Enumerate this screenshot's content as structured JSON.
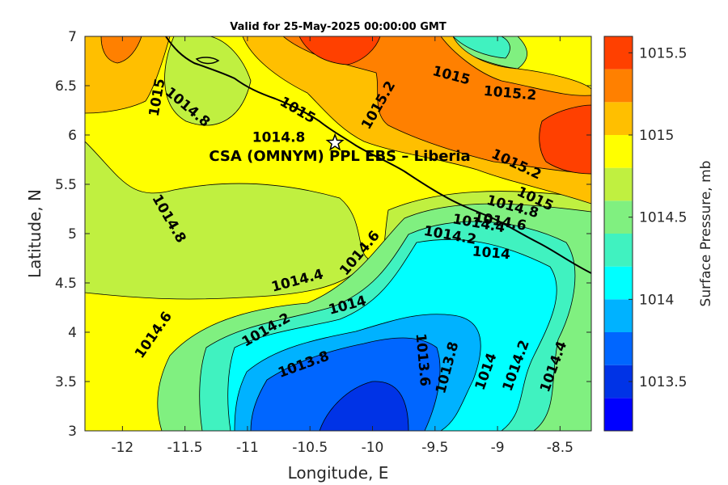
{
  "chart_data": {
    "type": "contourf",
    "title": "Valid for 25-May-2025 00:00:00 GMT",
    "xlabel": "Longitude, E",
    "ylabel": "Latitude, N",
    "xlim": [
      -12.3,
      -8.25
    ],
    "ylim": [
      3,
      7
    ],
    "xticks": [
      -12,
      -11.5,
      -11,
      -10.5,
      -10,
      -9.5,
      -9,
      -8.5
    ],
    "yticks": [
      3,
      3.5,
      4,
      4.5,
      5,
      5.5,
      6,
      6.5,
      7
    ],
    "colorbar": {
      "label": "Surface Pressure, mb",
      "range": [
        1013.2,
        1015.6
      ],
      "ticks": [
        1013.5,
        1014,
        1014.5,
        1015,
        1015.5
      ],
      "levels": [
        {
          "from": 1013.2,
          "to": 1013.4,
          "color": "#0000ff"
        },
        {
          "from": 1013.4,
          "to": 1013.6,
          "color": "#0033e6"
        },
        {
          "from": 1013.6,
          "to": 1013.8,
          "color": "#0066ff"
        },
        {
          "from": 1013.8,
          "to": 1014.0,
          "color": "#00b2ff"
        },
        {
          "from": 1014.0,
          "to": 1014.2,
          "color": "#00ffff"
        },
        {
          "from": 1014.2,
          "to": 1014.4,
          "color": "#40f2c0"
        },
        {
          "from": 1014.4,
          "to": 1014.6,
          "color": "#80f080"
        },
        {
          "from": 1014.6,
          "to": 1014.8,
          "color": "#c0f040"
        },
        {
          "from": 1014.8,
          "to": 1015.0,
          "color": "#ffff00"
        },
        {
          "from": 1015.0,
          "to": 1015.2,
          "color": "#ffbf00"
        },
        {
          "from": 1015.2,
          "to": 1015.4,
          "color": "#ff8000"
        },
        {
          "from": 1015.4,
          "to": 1015.6,
          "color": "#ff4000"
        },
        {
          "from": 1015.6,
          "to": 1015.8,
          "color": "#ff0000"
        }
      ]
    },
    "site": {
      "name": "CSA (OMNYM) PPL EBS  – Liberia",
      "lon": -10.3,
      "lat": 5.92
    },
    "contour_labels": [
      {
        "text": "1015",
        "lon": -11.72,
        "lat": 6.38,
        "rot": -80
      },
      {
        "text": "1014.8",
        "lon": -11.48,
        "lat": 6.28,
        "rot": 40
      },
      {
        "text": "1015",
        "lon": -10.6,
        "lat": 6.25,
        "rot": 30
      },
      {
        "text": "1015.2",
        "lon": -9.95,
        "lat": 6.3,
        "rot": -60
      },
      {
        "text": "1015",
        "lon": -9.37,
        "lat": 6.6,
        "rot": 15
      },
      {
        "text": "1015.2",
        "lon": -8.9,
        "lat": 6.42,
        "rot": 5
      },
      {
        "text": "1014.8",
        "lon": -10.75,
        "lat": 5.97,
        "rot": 0
      },
      {
        "text": "1015.2",
        "lon": -8.85,
        "lat": 5.7,
        "rot": 25
      },
      {
        "text": "1015",
        "lon": -8.7,
        "lat": 5.35,
        "rot": 25
      },
      {
        "text": "1014.8",
        "lon": -8.88,
        "lat": 5.27,
        "rot": 15
      },
      {
        "text": "1014.6",
        "lon": -8.98,
        "lat": 5.12,
        "rot": 10
      },
      {
        "text": "1014.4",
        "lon": -9.15,
        "lat": 5.1,
        "rot": 10
      },
      {
        "text": "1014.2",
        "lon": -9.38,
        "lat": 4.98,
        "rot": 10
      },
      {
        "text": "1014",
        "lon": -9.05,
        "lat": 4.8,
        "rot": 5
      },
      {
        "text": "1014.8",
        "lon": -11.63,
        "lat": 5.15,
        "rot": 60
      },
      {
        "text": "1014.6",
        "lon": -10.1,
        "lat": 4.8,
        "rot": -50
      },
      {
        "text": "1014.4",
        "lon": -10.6,
        "lat": 4.52,
        "rot": -15
      },
      {
        "text": "1014.6",
        "lon": -11.75,
        "lat": 3.97,
        "rot": -55
      },
      {
        "text": "1014.2",
        "lon": -10.85,
        "lat": 4.02,
        "rot": -30
      },
      {
        "text": "1014",
        "lon": -10.2,
        "lat": 4.27,
        "rot": -15
      },
      {
        "text": "1013.8",
        "lon": -10.55,
        "lat": 3.67,
        "rot": -20
      },
      {
        "text": "1013.6",
        "lon": -9.6,
        "lat": 3.72,
        "rot": 85
      },
      {
        "text": "1013.8",
        "lon": -9.4,
        "lat": 3.64,
        "rot": -75
      },
      {
        "text": "1014",
        "lon": -9.09,
        "lat": 3.6,
        "rot": -70
      },
      {
        "text": "1014.2",
        "lon": -8.85,
        "lat": 3.66,
        "rot": -70
      },
      {
        "text": "1014.4",
        "lon": -8.55,
        "lat": 3.65,
        "rot": -70
      }
    ]
  }
}
